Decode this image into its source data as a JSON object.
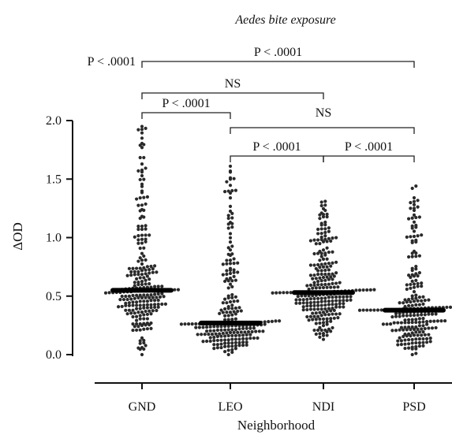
{
  "chart_data": {
    "type": "scatter",
    "subtype": "beeswarm dot plot with median bars",
    "title": "Aedes bite exposure",
    "xlabel": "Neighborhood",
    "ylabel": "ΔOD",
    "ylim": [
      0,
      2.0
    ],
    "yticks": [
      "0.0",
      "0.5",
      "1.0",
      "1.5",
      "2.0"
    ],
    "categories": [
      "GND",
      "LEO",
      "NDI",
      "PSD"
    ],
    "series": [
      {
        "category": "GND",
        "median": 0.55,
        "min": 0.0,
        "max": 1.95,
        "n": 240
      },
      {
        "category": "LEO",
        "median": 0.27,
        "min": 0.0,
        "max": 1.61,
        "n": 230
      },
      {
        "category": "NDI",
        "median": 0.53,
        "min": 0.13,
        "max": 1.31,
        "n": 260
      },
      {
        "category": "PSD",
        "median": 0.38,
        "min": 0.0,
        "max": 1.44,
        "n": 230
      }
    ],
    "comparisons": [
      {
        "from": "GND",
        "to": "PSD",
        "label": "P < .0001",
        "label_side": "left"
      },
      {
        "from": "GND",
        "to": "PSD",
        "label": "P < .0001"
      },
      {
        "from": "GND",
        "to": "NDI",
        "label": "NS"
      },
      {
        "from": "GND",
        "to": "LEO",
        "label": "P < .0001"
      },
      {
        "from": "LEO",
        "to": "PSD",
        "label": "NS"
      },
      {
        "from": "LEO",
        "to": "NDI",
        "label": "P < .0001"
      },
      {
        "from": "NDI",
        "to": "PSD",
        "label": "P < .0001"
      }
    ],
    "grid": false,
    "legend": "none"
  }
}
